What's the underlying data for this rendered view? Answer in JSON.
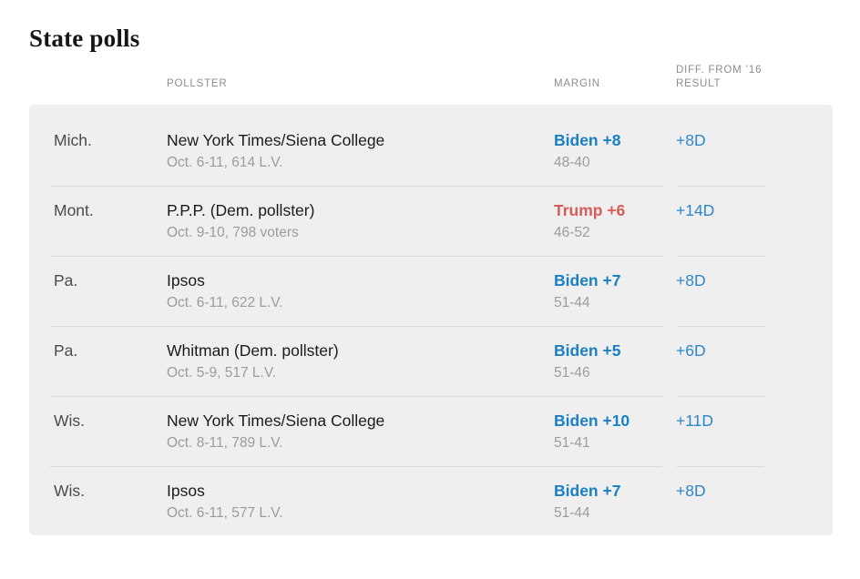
{
  "colors": {
    "panel_background": "#efefef",
    "divider": "#dbdbdb",
    "header_text": "#8c8c8c",
    "dem_blue": "#1a80c4",
    "rep_red": "#d95c58",
    "diff_blue": "#2e87c8",
    "muted_text": "#9c9c9c"
  },
  "chart_data": {
    "type": "table",
    "title": "State polls",
    "headers": {
      "state": "",
      "pollster": "POLLSTER",
      "margin": "MARGIN",
      "diff": "DIFF. FROM ’16\nRESULT"
    },
    "rows": [
      {
        "state": "Mich.",
        "pollster": "New York Times/Siena College",
        "details": "Oct. 6-11, 614 L.V.",
        "margin": "Biden +8",
        "party": "dem",
        "result": "48-40",
        "diff": "+8D"
      },
      {
        "state": "Mont.",
        "pollster": "P.P.P. (Dem. pollster)",
        "details": "Oct. 9-10, 798 voters",
        "margin": "Trump +6",
        "party": "rep",
        "result": "46-52",
        "diff": "+14D"
      },
      {
        "state": "Pa.",
        "pollster": "Ipsos",
        "details": "Oct. 6-11, 622 L.V.",
        "margin": "Biden +7",
        "party": "dem",
        "result": "51-44",
        "diff": "+8D"
      },
      {
        "state": "Pa.",
        "pollster": "Whitman (Dem. pollster)",
        "details": "Oct. 5-9, 517 L.V.",
        "margin": "Biden +5",
        "party": "dem",
        "result": "51-46",
        "diff": "+6D"
      },
      {
        "state": "Wis.",
        "pollster": "New York Times/Siena College",
        "details": "Oct. 8-11, 789 L.V.",
        "margin": "Biden +10",
        "party": "dem",
        "result": "51-41",
        "diff": "+11D"
      },
      {
        "state": "Wis.",
        "pollster": "Ipsos",
        "details": "Oct. 6-11, 577 L.V.",
        "margin": "Biden +7",
        "party": "dem",
        "result": "51-44",
        "diff": "+8D"
      }
    ]
  }
}
